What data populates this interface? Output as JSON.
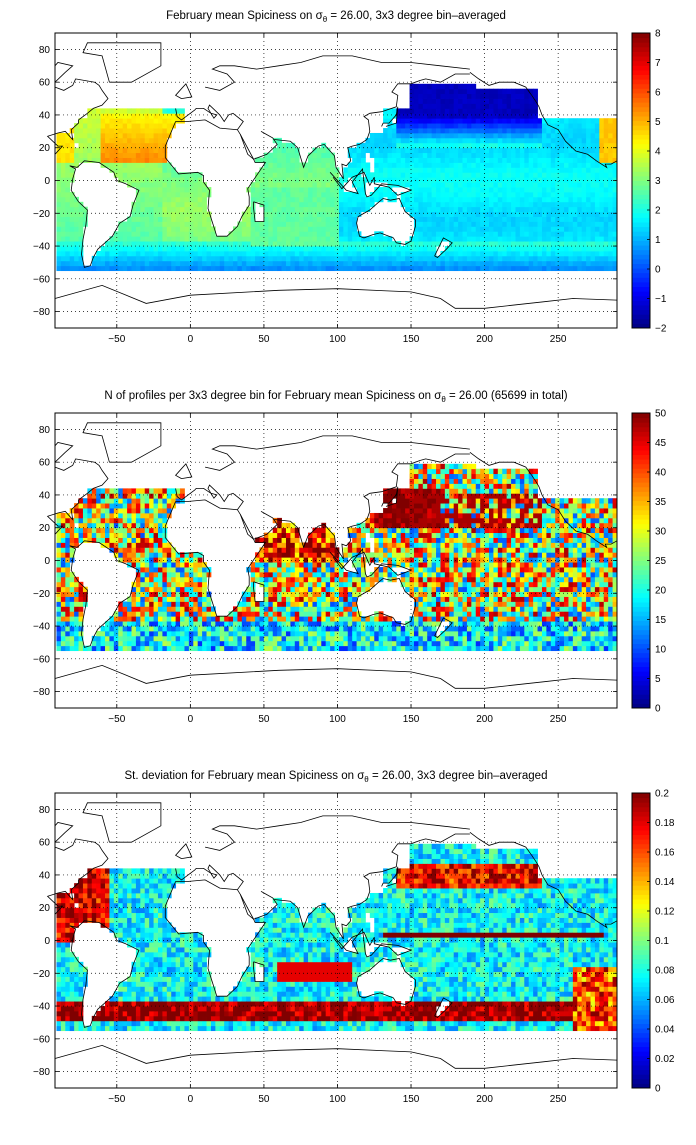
{
  "chart_data": [
    {
      "type": "heatmap",
      "title_parts": [
        "February mean Spiciness on σ",
        "θ",
        " = 26.00, 3x3 degree bin–averaged"
      ],
      "xlabel": "",
      "ylabel": "",
      "xlim": [
        -92,
        290
      ],
      "ylim": [
        -90,
        90
      ],
      "xticks": [
        -50,
        0,
        50,
        100,
        150,
        200,
        250
      ],
      "yticks": [
        80,
        60,
        40,
        20,
        0,
        -20,
        -40,
        -60,
        -80
      ],
      "grid": true,
      "colorbar": {
        "range": [
          -2,
          8
        ],
        "ticks": [
          8,
          7,
          6,
          5,
          4,
          3,
          2,
          1,
          0,
          -1,
          -2
        ]
      },
      "field": "spiciness"
    },
    {
      "type": "heatmap",
      "title_parts": [
        "N of profiles per 3x3 degree bin for February mean Spiciness on σ",
        "θ",
        " = 26.00 (65699 in total)"
      ],
      "xlabel": "",
      "ylabel": "",
      "xlim": [
        -92,
        290
      ],
      "ylim": [
        -90,
        90
      ],
      "xticks": [
        -50,
        0,
        50,
        100,
        150,
        200,
        250
      ],
      "yticks": [
        80,
        60,
        40,
        20,
        0,
        -20,
        -40,
        -60,
        -80
      ],
      "grid": true,
      "colorbar": {
        "range": [
          0,
          50
        ],
        "ticks": [
          50,
          45,
          40,
          35,
          30,
          25,
          20,
          15,
          10,
          5,
          0
        ]
      },
      "field": "count"
    },
    {
      "type": "heatmap",
      "title_parts": [
        "St. deviation for February mean Spiciness on σ",
        "θ",
        " = 26.00, 3x3 degree bin–averaged"
      ],
      "xlabel": "",
      "ylabel": "",
      "xlim": [
        -92,
        290
      ],
      "ylim": [
        -90,
        90
      ],
      "xticks": [
        -50,
        0,
        50,
        100,
        150,
        200,
        250
      ],
      "yticks": [
        80,
        60,
        40,
        20,
        0,
        -20,
        -40,
        -60,
        -80
      ],
      "grid": true,
      "colorbar": {
        "range": [
          0,
          0.2
        ],
        "ticks": [
          0.2,
          0.18,
          0.16,
          0.14,
          0.12,
          0.1,
          0.08,
          0.06,
          0.04,
          0.02,
          0
        ]
      },
      "field": "stddev"
    }
  ]
}
